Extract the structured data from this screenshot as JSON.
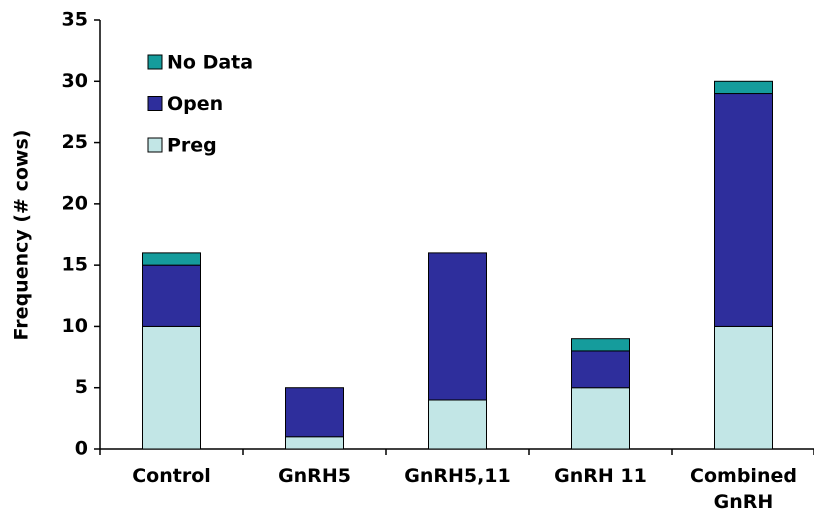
{
  "chart_data": {
    "type": "stacked-bar",
    "y_label": "Frequency (# cows)",
    "categories": [
      "Control",
      "GnRH5",
      "GnRH5,11",
      "GnRH 11",
      "Combined GnRH"
    ],
    "series": [
      {
        "name": "Preg",
        "color": "#c2e6e6",
        "values": [
          10,
          1,
          4,
          5,
          10
        ]
      },
      {
        "name": "Open",
        "color": "#2e2e9c",
        "values": [
          5,
          4,
          12,
          3,
          19
        ]
      },
      {
        "name": "No Data",
        "color": "#159c9c",
        "values": [
          1,
          0,
          0,
          1,
          1
        ]
      }
    ],
    "ylim": [
      0,
      35
    ],
    "yticks": [
      0,
      5,
      10,
      15,
      20,
      25,
      30,
      35
    ]
  }
}
